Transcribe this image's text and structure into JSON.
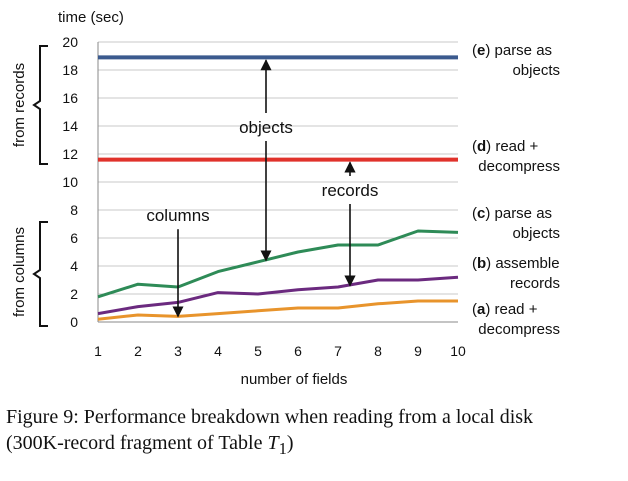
{
  "chart_data": {
    "type": "line",
    "ylabel": "time (sec)",
    "xlabel": "number of fields",
    "x": [
      1,
      2,
      3,
      4,
      5,
      6,
      7,
      8,
      9,
      10
    ],
    "ylim": [
      0,
      20
    ],
    "xlim": [
      1,
      10
    ],
    "yticks": [
      0,
      2,
      4,
      6,
      8,
      10,
      12,
      14,
      16,
      18,
      20
    ],
    "xticks": [
      1,
      2,
      3,
      4,
      5,
      6,
      7,
      8,
      9,
      10
    ],
    "grid": "horizontal",
    "series": [
      {
        "name": "(e) parse as objects",
        "color": "#3b5a8e",
        "values": [
          18.9,
          18.9,
          18.9,
          18.9,
          18.9,
          18.9,
          18.9,
          18.9,
          18.9,
          18.9
        ]
      },
      {
        "name": "(d) read + decompress",
        "color": "#e0322b",
        "values": [
          11.6,
          11.6,
          11.6,
          11.6,
          11.6,
          11.6,
          11.6,
          11.6,
          11.6,
          11.6
        ]
      },
      {
        "name": "(c) parse as objects",
        "color": "#2e8b57",
        "values": [
          1.8,
          2.7,
          2.5,
          3.6,
          4.3,
          5.0,
          5.5,
          5.5,
          6.5,
          6.4
        ]
      },
      {
        "name": "(b) assemble records",
        "color": "#6b2a7f",
        "values": [
          0.6,
          1.1,
          1.4,
          2.1,
          2.0,
          2.3,
          2.5,
          3.0,
          3.0,
          3.2
        ]
      },
      {
        "name": "(a) read + decompress",
        "color": "#e8942c",
        "values": [
          0.2,
          0.5,
          0.4,
          0.6,
          0.8,
          1.0,
          1.0,
          1.3,
          1.5,
          1.5
        ]
      }
    ],
    "legend": [
      {
        "key": "e",
        "text_line1": "parse as",
        "text_line2": "objects"
      },
      {
        "key": "d",
        "text_line1": "read +",
        "text_line2": "decompress"
      },
      {
        "key": "c",
        "text_line1": "parse as",
        "text_line2": "objects"
      },
      {
        "key": "b",
        "text_line1": "assemble",
        "text_line2": "records"
      },
      {
        "key": "a",
        "text_line1": "read +",
        "text_line2": "decompress"
      }
    ],
    "group_labels": [
      "from records",
      "from columns"
    ],
    "annotations": [
      {
        "text": "objects",
        "x": 5.2,
        "y": 13.5,
        "arrow_from": 5.2,
        "arrow_up_to": 18.7,
        "arrow_down_to": 4.4
      },
      {
        "text": "records",
        "x": 7.3,
        "y": 9.0,
        "arrow_from": 7.3,
        "arrow_up_to": 11.4,
        "arrow_down_to": 2.6
      },
      {
        "text": "columns",
        "x": 3.0,
        "y": 7.2,
        "arrow_from": 3.0,
        "arrow_down_to": 0.4
      }
    ]
  },
  "caption": {
    "line1": "Figure 9: Performance breakdown when reading from a local disk",
    "line2_prefix": "(300K-record fragment of Table ",
    "line2_var": "T",
    "line2_sub": "1",
    "line2_suffix": ")"
  }
}
